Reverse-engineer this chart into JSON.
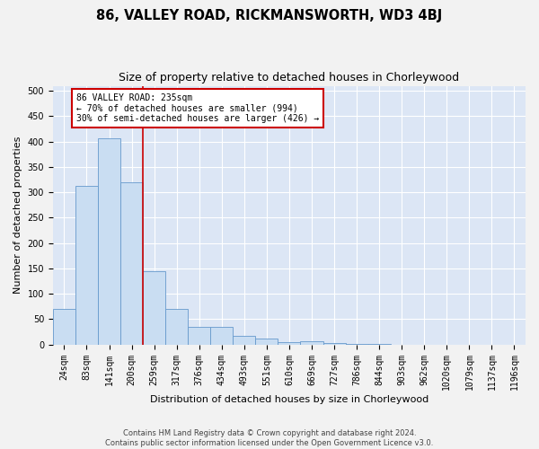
{
  "title": "86, VALLEY ROAD, RICKMANSWORTH, WD3 4BJ",
  "subtitle": "Size of property relative to detached houses in Chorleywood",
  "xlabel": "Distribution of detached houses by size in Chorleywood",
  "ylabel": "Number of detached properties",
  "footer_line1": "Contains HM Land Registry data © Crown copyright and database right 2024.",
  "footer_line2": "Contains public sector information licensed under the Open Government Licence v3.0.",
  "bar_labels": [
    "24sqm",
    "83sqm",
    "141sqm",
    "200sqm",
    "259sqm",
    "317sqm",
    "376sqm",
    "434sqm",
    "493sqm",
    "551sqm",
    "610sqm",
    "669sqm",
    "727sqm",
    "786sqm",
    "844sqm",
    "903sqm",
    "962sqm",
    "1020sqm",
    "1079sqm",
    "1137sqm",
    "1196sqm"
  ],
  "bar_heights": [
    70,
    312,
    407,
    320,
    145,
    70,
    35,
    35,
    17,
    11,
    5,
    7,
    2,
    1,
    1,
    0,
    0,
    0,
    0,
    0,
    0
  ],
  "bar_color": "#c9ddf2",
  "bar_edge_color": "#6699cc",
  "red_line_x": 4,
  "annotation_text": "86 VALLEY ROAD: 235sqm\n← 70% of detached houses are smaller (994)\n30% of semi-detached houses are larger (426) →",
  "annotation_box_color": "#ffffff",
  "annotation_box_edge_color": "#cc0000",
  "red_line_color": "#cc0000",
  "ylim": [
    0,
    510
  ],
  "yticks": [
    0,
    50,
    100,
    150,
    200,
    250,
    300,
    350,
    400,
    450,
    500
  ],
  "plot_bg_color": "#dce6f5",
  "fig_bg_color": "#f2f2f2",
  "title_fontsize": 10.5,
  "subtitle_fontsize": 9,
  "axis_label_fontsize": 8,
  "tick_fontsize": 7,
  "annotation_fontsize": 7,
  "footer_fontsize": 6
}
